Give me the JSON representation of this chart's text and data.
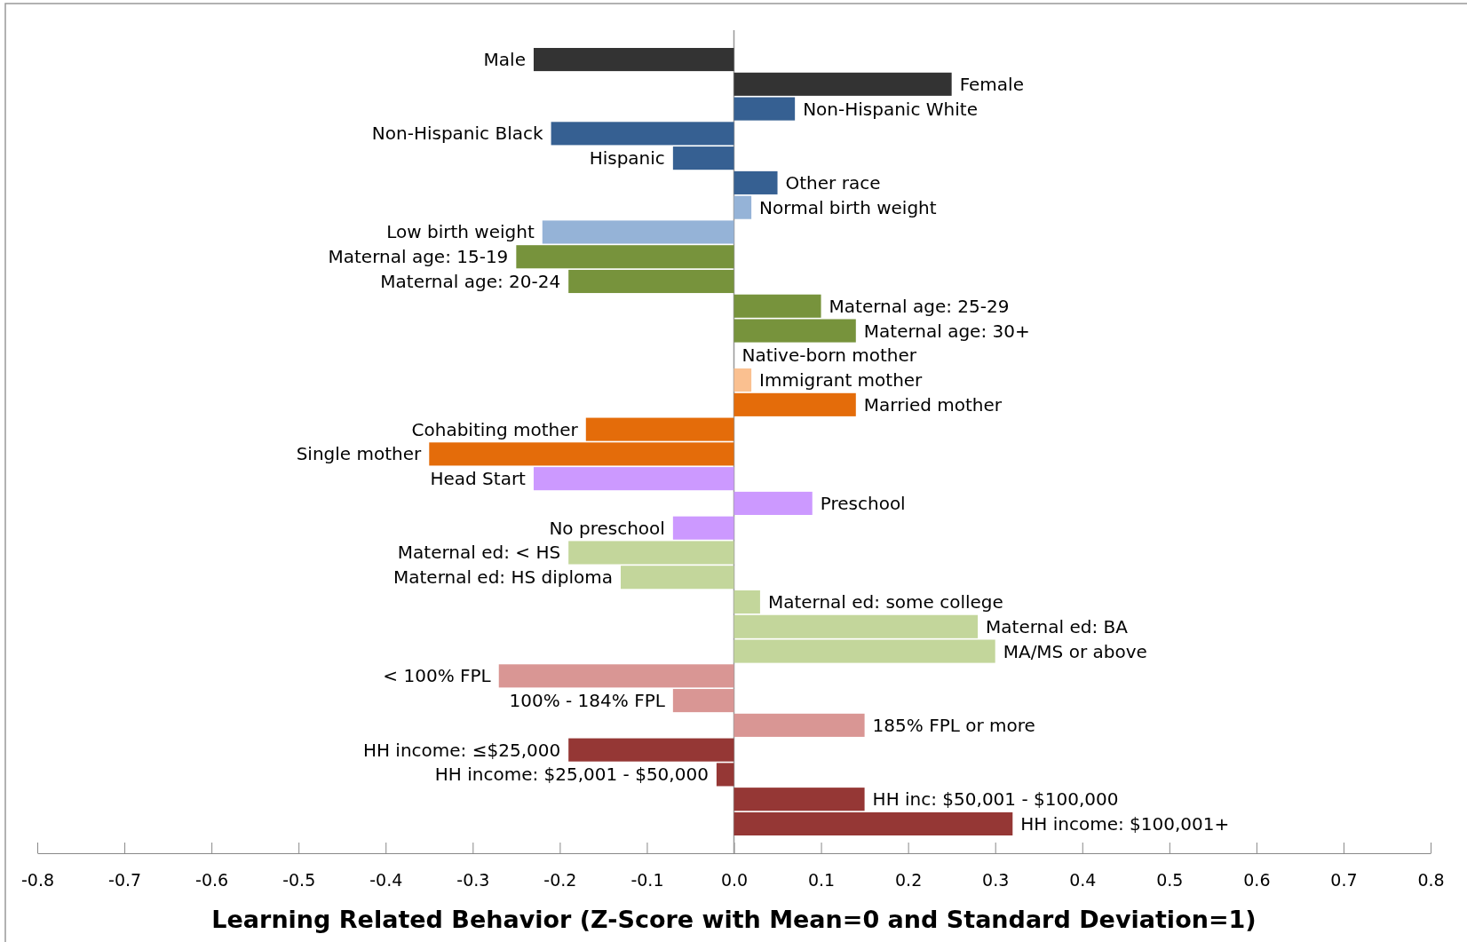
{
  "chart_data": {
    "type": "bar",
    "orientation": "horizontal",
    "xlabel": "Learning Related Behavior (Z-Score with Mean=0 and Standard Deviation=1)",
    "categories": [
      "Male",
      "Female",
      "Non-Hispanic White",
      "Non-Hispanic Black",
      "Hispanic",
      "Other race",
      "Normal birth weight",
      "Low birth weight",
      "Maternal age: 15-19",
      "Maternal age: 20-24",
      "Maternal age: 25-29",
      "Maternal age: 30+",
      "Native-born mother",
      "Immigrant mother",
      "Married mother",
      "Cohabiting mother",
      "Single mother",
      "Head Start",
      "Preschool",
      "No preschool",
      "Maternal ed: < HS",
      "Maternal ed: HS diploma",
      "Maternal ed: some college",
      "Maternal ed: BA",
      "MA/MS or above",
      "< 100% FPL",
      "100% - 184% FPL",
      "185% FPL or more",
      "HH income: ≤$25,000",
      "HH income: $25,001 - $50,000",
      "HH inc: $50,001 - $100,000",
      "HH income: $100,001+"
    ],
    "values": [
      -0.23,
      0.25,
      0.07,
      -0.21,
      -0.07,
      0.05,
      0.02,
      -0.22,
      -0.25,
      -0.19,
      0.1,
      0.14,
      0,
      0.02,
      0.14,
      -0.17,
      -0.35,
      -0.23,
      0.09,
      -0.07,
      -0.19,
      -0.13,
      0.03,
      0.28,
      0.3,
      -0.27,
      -0.07,
      0.15,
      -0.19,
      -0.02,
      0.15,
      0.32
    ],
    "colors": [
      "#333333",
      "#333333",
      "#366092",
      "#366092",
      "#366092",
      "#366092",
      "#95b3d7",
      "#95b3d7",
      "#77933c",
      "#77933c",
      "#77933c",
      "#77933c",
      "#fac090",
      "#fac090",
      "#e46c0a",
      "#e46c0a",
      "#e46c0a",
      "#cc99ff",
      "#cc99ff",
      "#cc99ff",
      "#c3d69b",
      "#c3d69b",
      "#c3d69b",
      "#c3d69b",
      "#c3d69b",
      "#d99694",
      "#d99694",
      "#d99694",
      "#953735",
      "#953735",
      "#953735",
      "#953735"
    ],
    "xlim": [
      -0.8,
      0.8
    ],
    "xticks": [
      -0.8,
      -0.7,
      -0.6,
      -0.5,
      -0.4,
      -0.3,
      -0.2,
      -0.1,
      {
        "value": 0,
        "label": "0.0"
      },
      0.1,
      0.2,
      0.3,
      0.4,
      0.5,
      0.6,
      0.7,
      0.8
    ]
  }
}
